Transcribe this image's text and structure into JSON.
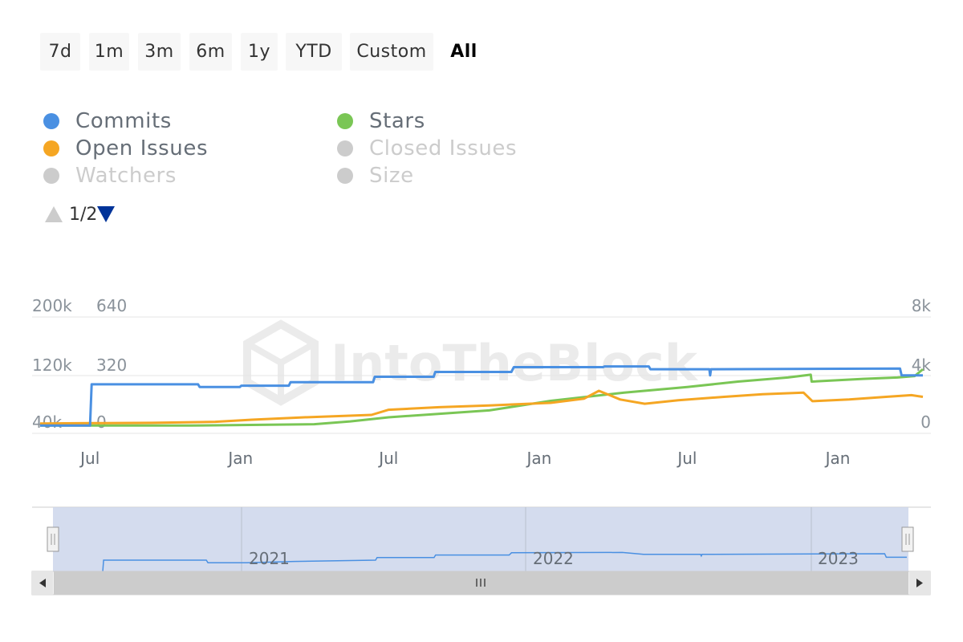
{
  "range_selector": {
    "buttons": [
      "7d",
      "1m",
      "3m",
      "6m",
      "1y",
      "YTD",
      "Custom",
      "All"
    ],
    "selected": "All"
  },
  "legend": {
    "items": [
      {
        "name": "Commits",
        "color": "#4a90e2",
        "visible": true
      },
      {
        "name": "Stars",
        "color": "#7ac655",
        "visible": true
      },
      {
        "name": "Open Issues",
        "color": "#f5a623",
        "visible": true
      },
      {
        "name": "Closed Issues",
        "color": "#cccccc",
        "visible": false
      },
      {
        "name": "Watchers",
        "color": "#cccccc",
        "visible": false
      },
      {
        "name": "Size",
        "color": "#cccccc",
        "visible": false
      }
    ],
    "pager": {
      "current": "1",
      "total": "2",
      "text": "1/2"
    }
  },
  "watermark": "IntoTheBlock",
  "chart_data": {
    "type": "line",
    "x_tick_labels": [
      "Jul",
      "Jan",
      "Jul",
      "Jan",
      "Jul",
      "Jan"
    ],
    "axes": {
      "commits_axis": {
        "side": "left",
        "ticks": [
          "200k",
          "120k",
          "40k"
        ],
        "range": [
          40000,
          200000
        ]
      },
      "issues_axis": {
        "side": "left",
        "ticks": [
          "640",
          "320",
          "0"
        ],
        "range": [
          0,
          640
        ]
      },
      "stars_axis": {
        "side": "right",
        "ticks": [
          "8k",
          "4k",
          "0"
        ],
        "range": [
          0,
          8000
        ]
      }
    },
    "x_range": [
      "2020-05-01",
      "2023-04-15"
    ],
    "series": [
      {
        "name": "Commits",
        "axis": "commits_axis",
        "color": "#4a90e2",
        "points": [
          [
            "2020-05-01",
            42000
          ],
          [
            "2020-07-01",
            42000
          ],
          [
            "2020-07-03",
            102000
          ],
          [
            "2020-11-10",
            102000
          ],
          [
            "2020-11-12",
            98000
          ],
          [
            "2020-12-31",
            98000
          ],
          [
            "2021-01-02",
            100000
          ],
          [
            "2021-03-01",
            100000
          ],
          [
            "2021-03-03",
            105000
          ],
          [
            "2021-06-12",
            105000
          ],
          [
            "2021-06-14",
            113000
          ],
          [
            "2021-08-25",
            113000
          ],
          [
            "2021-08-27",
            120000
          ],
          [
            "2021-11-28",
            120000
          ],
          [
            "2021-12-01",
            127000
          ],
          [
            "2022-03-20",
            127000
          ],
          [
            "2022-03-22",
            128000
          ],
          [
            "2022-05-15",
            128000
          ],
          [
            "2022-05-17",
            124000
          ],
          [
            "2022-07-28",
            124000
          ],
          [
            "2022-07-29",
            115000
          ],
          [
            "2022-07-30",
            124000
          ],
          [
            "2023-03-18",
            125000
          ],
          [
            "2023-03-20",
            115000
          ],
          [
            "2023-04-15",
            115000
          ]
        ]
      },
      {
        "name": "Open Issues",
        "axis": "issues_axis",
        "color": "#f5a623",
        "points": [
          [
            "2020-05-01",
            20
          ],
          [
            "2020-07-01",
            22
          ],
          [
            "2020-09-15",
            24
          ],
          [
            "2020-12-01",
            30
          ],
          [
            "2021-01-15",
            42
          ],
          [
            "2021-03-15",
            55
          ],
          [
            "2021-06-10",
            70
          ],
          [
            "2021-07-01",
            100
          ],
          [
            "2021-09-01",
            115
          ],
          [
            "2021-11-01",
            125
          ],
          [
            "2022-01-15",
            140
          ],
          [
            "2022-02-25",
            165
          ],
          [
            "2022-03-15",
            210
          ],
          [
            "2022-04-10",
            160
          ],
          [
            "2022-05-10",
            135
          ],
          [
            "2022-06-20",
            155
          ],
          [
            "2022-08-15",
            175
          ],
          [
            "2022-10-01",
            190
          ],
          [
            "2022-11-20",
            200
          ],
          [
            "2022-12-01",
            150
          ],
          [
            "2023-01-15",
            160
          ],
          [
            "2023-03-01",
            175
          ],
          [
            "2023-04-01",
            185
          ],
          [
            "2023-04-15",
            175
          ]
        ]
      },
      {
        "name": "Stars",
        "axis": "stars_axis",
        "color": "#7ac655",
        "points": [
          [
            "2020-05-01",
            100
          ],
          [
            "2020-11-01",
            100
          ],
          [
            "2021-04-01",
            200
          ],
          [
            "2021-05-15",
            400
          ],
          [
            "2021-07-01",
            700
          ],
          [
            "2021-11-01",
            1200
          ],
          [
            "2022-01-15",
            1900
          ],
          [
            "2022-04-15",
            2500
          ],
          [
            "2022-07-01",
            2900
          ],
          [
            "2022-09-01",
            3300
          ],
          [
            "2022-11-01",
            3600
          ],
          [
            "2022-11-29",
            3800
          ],
          [
            "2022-11-30",
            3300
          ],
          [
            "2023-02-01",
            3500
          ],
          [
            "2023-03-15",
            3600
          ],
          [
            "2023-04-05",
            3700
          ],
          [
            "2023-04-15",
            4200
          ]
        ]
      }
    ]
  },
  "navigator": {
    "year_labels": [
      "2021",
      "2022",
      "2023"
    ],
    "grip_icon": "grip-icon",
    "scroll_left_icon": "triangle-left-icon",
    "scroll_right_icon": "triangle-right-icon",
    "scroll_thumb_icon": "grip-icon",
    "series_points": [
      [
        "2020-05-01",
        44000
      ],
      [
        "2020-07-01",
        44000
      ],
      [
        "2020-07-03",
        110000
      ],
      [
        "2020-11-10",
        110000
      ],
      [
        "2020-11-12",
        102000
      ],
      [
        "2020-12-31",
        102000
      ],
      [
        "2021-03-01",
        106000
      ],
      [
        "2021-06-12",
        110000
      ],
      [
        "2021-06-14",
        118000
      ],
      [
        "2021-08-25",
        118000
      ],
      [
        "2021-08-27",
        126000
      ],
      [
        "2021-11-28",
        126000
      ],
      [
        "2021-12-01",
        133000
      ],
      [
        "2022-04-20",
        134000
      ],
      [
        "2022-05-17",
        128000
      ],
      [
        "2022-07-28",
        128000
      ],
      [
        "2022-07-29",
        123000
      ],
      [
        "2022-07-30",
        128000
      ],
      [
        "2023-03-18",
        130000
      ],
      [
        "2023-03-20",
        119000
      ],
      [
        "2023-04-15",
        119000
      ]
    ]
  }
}
